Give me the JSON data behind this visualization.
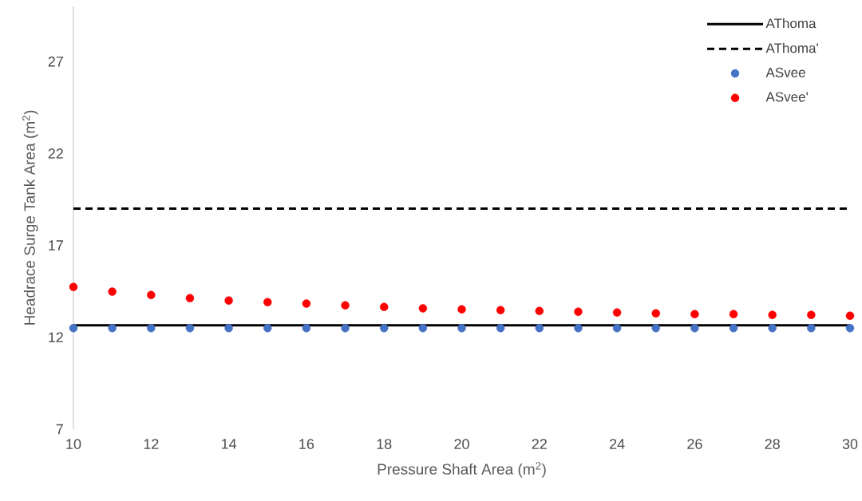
{
  "chart_data": {
    "type": "scatter",
    "xlabel": "Pressure Shaft Area (m$^{2}$)",
    "ylabel": "Headrace Surge Tank Area (m$^{2}$)",
    "x": [
      10,
      11,
      12,
      13,
      14,
      15,
      16,
      17,
      18,
      19,
      20,
      21,
      22,
      23,
      24,
      25,
      26,
      27,
      28,
      29,
      30
    ],
    "xlim": [
      10,
      30
    ],
    "xticks": [
      10,
      12,
      14,
      16,
      18,
      20,
      22,
      24,
      26,
      28,
      30
    ],
    "ylim": [
      7,
      30
    ],
    "yticks": [
      7,
      12,
      17,
      22,
      27
    ],
    "grid": false,
    "legend": "top right",
    "series": [
      {
        "name": "AThoma",
        "type": "line",
        "color": "#000000",
        "line_style": "solid",
        "marker": "none",
        "values": [
          12.65,
          12.65,
          12.65,
          12.65,
          12.65,
          12.65,
          12.65,
          12.65,
          12.65,
          12.65,
          12.65,
          12.65,
          12.65,
          12.65,
          12.65,
          12.65,
          12.65,
          12.65,
          12.65,
          12.65,
          12.65
        ]
      },
      {
        "name": "AThoma'",
        "type": "line",
        "color": "#000000",
        "line_style": "dashed",
        "marker": "none",
        "values": [
          19.0,
          19.0,
          19.0,
          19.0,
          19.0,
          19.0,
          19.0,
          19.0,
          19.0,
          19.0,
          19.0,
          19.0,
          19.0,
          19.0,
          19.0,
          19.0,
          19.0,
          19.0,
          19.0,
          19.0,
          19.0
        ]
      },
      {
        "name": "ASvee",
        "type": "scatter",
        "color": "#4472c4",
        "marker": "circle",
        "values": [
          12.5,
          12.5,
          12.5,
          12.5,
          12.5,
          12.5,
          12.5,
          12.5,
          12.5,
          12.5,
          12.5,
          12.5,
          12.5,
          12.5,
          12.5,
          12.5,
          12.5,
          12.5,
          12.5,
          12.5,
          12.5
        ]
      },
      {
        "name": "ASvee'",
        "type": "scatter",
        "color": "#ff0000",
        "marker": "circle",
        "values": [
          14.74,
          14.48,
          14.3,
          14.13,
          14.0,
          13.91,
          13.83,
          13.74,
          13.65,
          13.57,
          13.52,
          13.48,
          13.43,
          13.39,
          13.35,
          13.3,
          13.26,
          13.26,
          13.22,
          13.22,
          13.17
        ]
      }
    ]
  }
}
